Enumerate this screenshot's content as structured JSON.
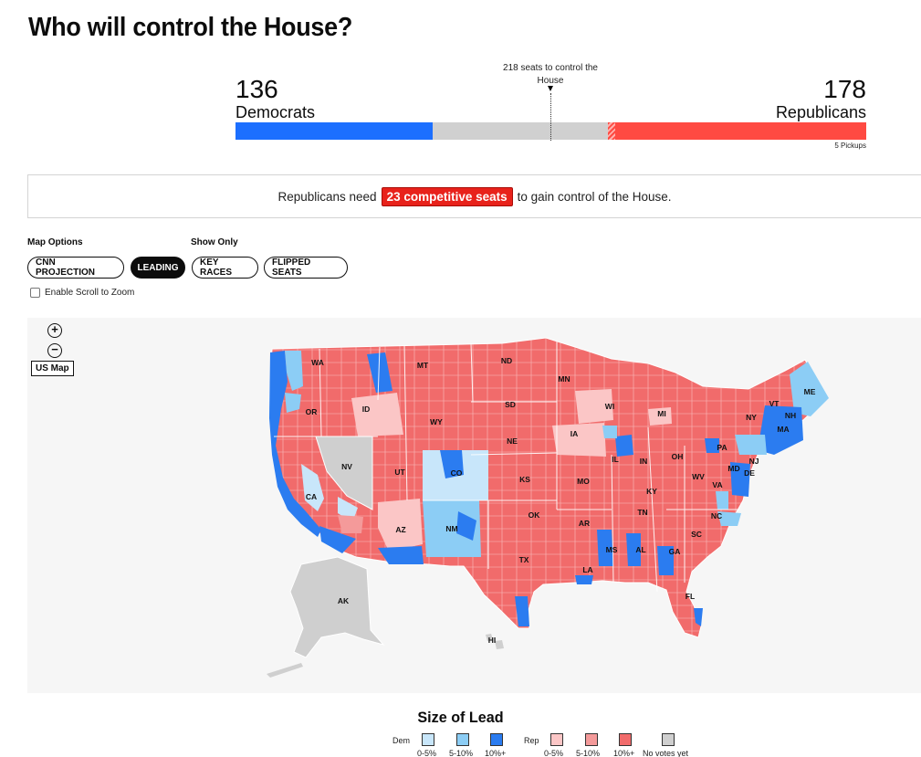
{
  "page": {
    "title": "Who will control the House?"
  },
  "scoreboard": {
    "dem_count": "136",
    "dem_label": "Democrats",
    "rep_count": "178",
    "rep_label": "Republicans",
    "threshold_text": "218 seats to control the House",
    "pickups": "5 Pickups",
    "total_seats": 435,
    "dem_seats": 136,
    "rep_seats": 178,
    "rep_pickup_seats": 5,
    "threshold_seats": 218,
    "colors": {
      "dem": "#1c6fff",
      "rep": "#ff4a42",
      "undecided": "#d0d0d0"
    }
  },
  "notice": {
    "prefix": "Republicans need",
    "highlight": "23 competitive seats",
    "suffix": "to gain control of the House."
  },
  "controls": {
    "map_options_label": "Map Options",
    "show_only_label": "Show Only",
    "buttons": {
      "cnn_projection": "CNN PROJECTION",
      "leading": "LEADING",
      "key_races": "KEY RACES",
      "flipped_seats": "FLIPPED SEATS"
    },
    "active_button": "LEADING",
    "scroll_zoom_label": "Enable Scroll to Zoom",
    "scroll_zoom_checked": false
  },
  "map": {
    "zoom_in_icon": "plus-circle-icon",
    "zoom_out_icon": "minus-circle-icon",
    "us_map_button": "US Map",
    "state_labels": [
      "WA",
      "MT",
      "ND",
      "MN",
      "ME",
      "OR",
      "ID",
      "SD",
      "WI",
      "VT",
      "NH",
      "NY",
      "MA",
      "MI",
      "WY",
      "IA",
      "NV",
      "NE",
      "PA",
      "OH",
      "CO",
      "UT",
      "IL",
      "IN",
      "MD",
      "NJ",
      "DE",
      "CA",
      "KS",
      "MO",
      "WV",
      "VA",
      "KY",
      "OK",
      "AZ",
      "NM",
      "TN",
      "NC",
      "AR",
      "SC",
      "MS",
      "AL",
      "GA",
      "TX",
      "LA",
      "FL",
      "AK",
      "HI"
    ]
  },
  "legend": {
    "title": "Size of Lead",
    "dem_label": "Dem",
    "rep_label": "Rep",
    "ranges": [
      "0-5%",
      "5-10%",
      "10%+"
    ],
    "no_votes_label": "No votes yet",
    "colors": {
      "dem": [
        "#c8e6fa",
        "#8ccdf5",
        "#2b7cf0"
      ],
      "rep": [
        "#fbc6c6",
        "#f49a9a",
        "#f16b6b"
      ],
      "none": "#cfcfcf"
    }
  }
}
